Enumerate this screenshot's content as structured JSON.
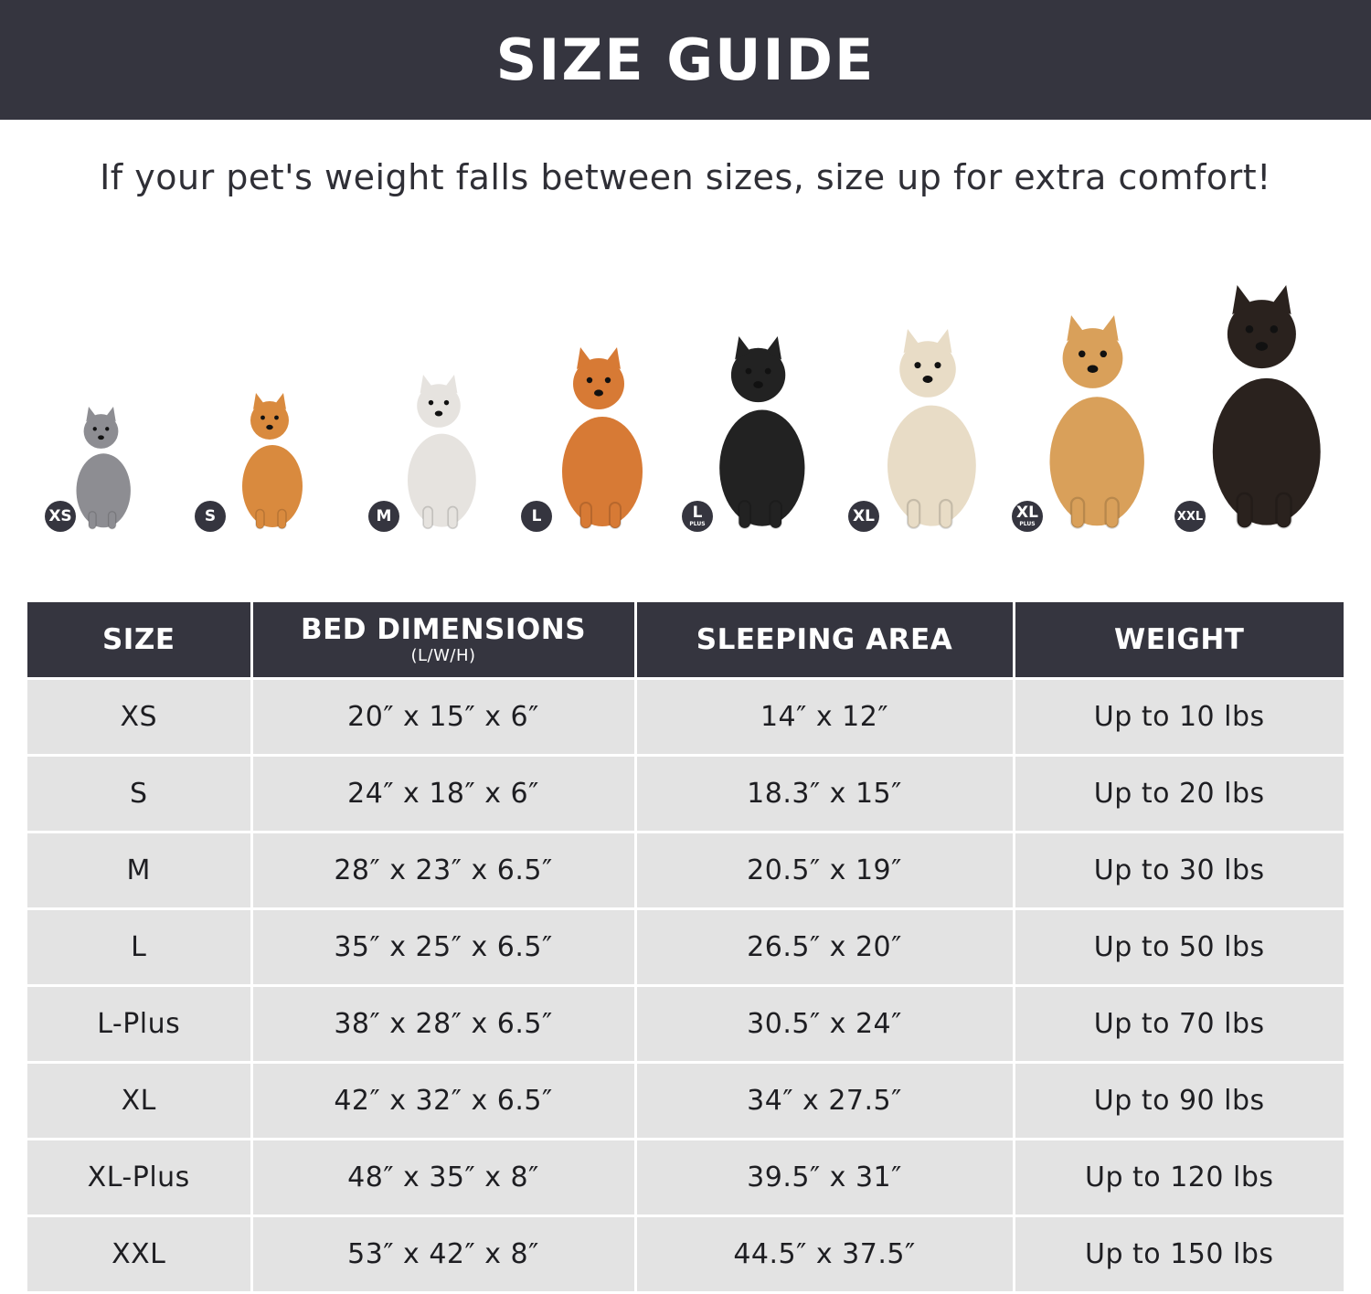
{
  "header": {
    "title": "SIZE GUIDE"
  },
  "subtitle": "If your pet's weight falls between sizes, size up for extra comfort!",
  "pets": [
    {
      "badge": "XS",
      "plus": "",
      "animal": "cat",
      "color": "#8d8d92"
    },
    {
      "badge": "S",
      "plus": "",
      "animal": "pomeranian",
      "color": "#d98a3e"
    },
    {
      "badge": "M",
      "plus": "",
      "animal": "french-bulldog",
      "color": "#e6e3df"
    },
    {
      "badge": "L",
      "plus": "",
      "animal": "shiba-inu",
      "color": "#d77a35"
    },
    {
      "badge": "L",
      "plus": "PLUS",
      "animal": "border-collie",
      "color": "#222222"
    },
    {
      "badge": "XL",
      "plus": "",
      "animal": "labrador",
      "color": "#e8dcc6"
    },
    {
      "badge": "XL",
      "plus": "PLUS",
      "animal": "golden-retriever",
      "color": "#d9a05a"
    },
    {
      "badge": "XXL",
      "plus": "",
      "animal": "doberman",
      "color": "#2a221e"
    }
  ],
  "table": {
    "headers": {
      "size": "SIZE",
      "dimensions": "BED DIMENSIONS",
      "dimensions_sub": "(L/W/H)",
      "area": "SLEEPING AREA",
      "weight": "WEIGHT"
    },
    "rows": [
      {
        "size": "XS",
        "dimensions": "20″ x 15″ x 6″",
        "area": "14″ x 12″",
        "weight": "Up to 10 lbs"
      },
      {
        "size": "S",
        "dimensions": "24″ x 18″ x 6″",
        "area": "18.3″ x 15″",
        "weight": "Up to 20 lbs"
      },
      {
        "size": "M",
        "dimensions": "28″ x 23″ x 6.5″",
        "area": "20.5″ x 19″",
        "weight": "Up to 30 lbs"
      },
      {
        "size": "L",
        "dimensions": "35″ x 25″ x 6.5″",
        "area": "26.5″ x 20″",
        "weight": "Up to 50 lbs"
      },
      {
        "size": "L-Plus",
        "dimensions": "38″ x 28″ x 6.5″",
        "area": "30.5″ x 24″",
        "weight": "Up to 70 lbs"
      },
      {
        "size": "XL",
        "dimensions": "42″ x 32″ x 6.5″",
        "area": "34″ x 27.5″",
        "weight": "Up to 90 lbs"
      },
      {
        "size": "XL-Plus",
        "dimensions": "48″ x 35″ x 8″",
        "area": "39.5″ x 31″",
        "weight": "Up to 120 lbs"
      },
      {
        "size": "XXL",
        "dimensions": "53″ x 42″ x 8″",
        "area": "44.5″ x 37.5″",
        "weight": "Up to 150 lbs"
      }
    ]
  }
}
